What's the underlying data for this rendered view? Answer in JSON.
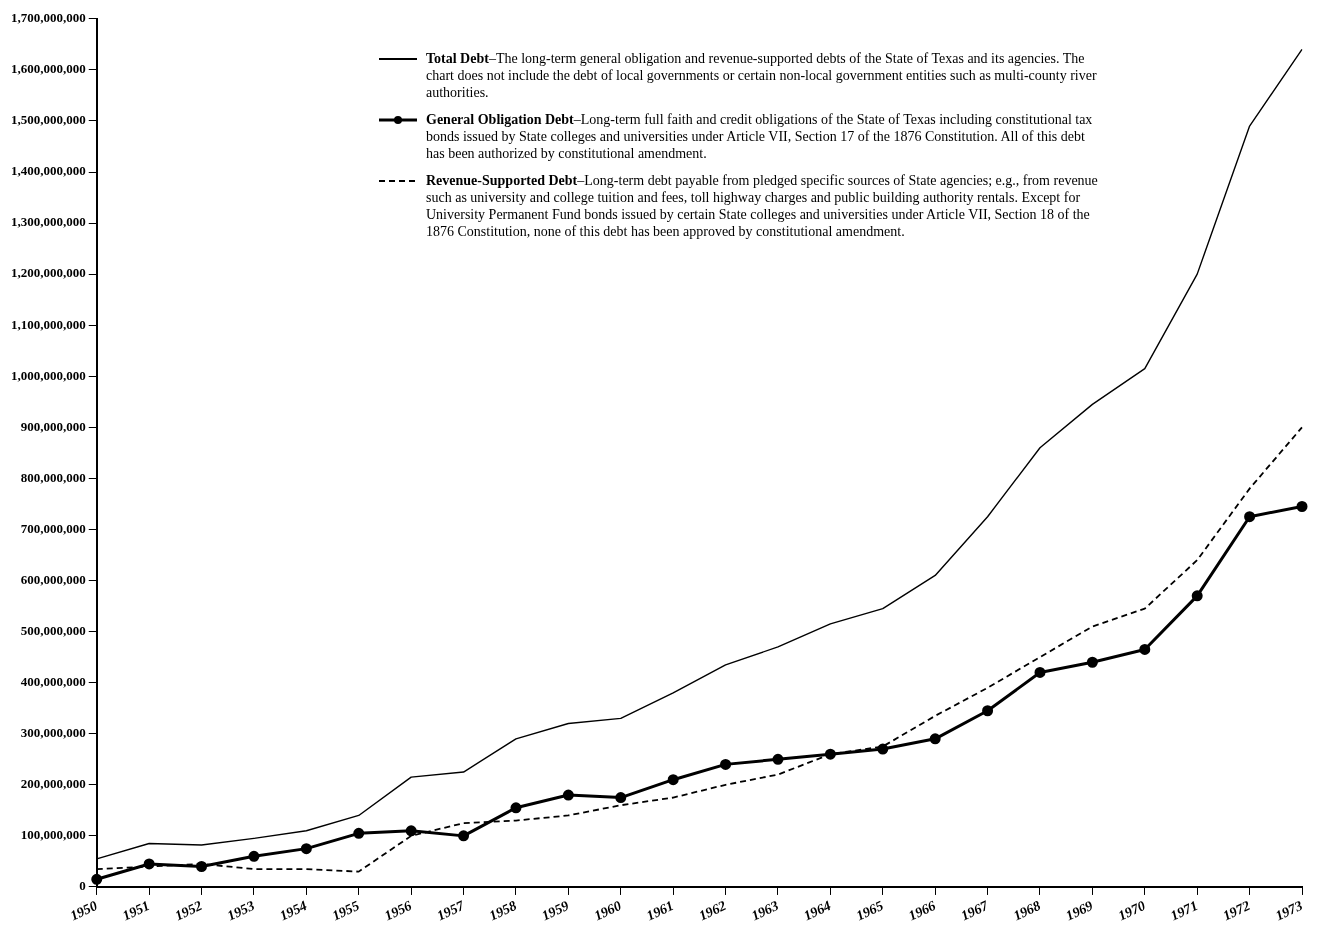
{
  "chart_data": {
    "type": "line",
    "categories": [
      "1950",
      "1951",
      "1952",
      "1953",
      "1954",
      "1955",
      "1956",
      "1957",
      "1958",
      "1959",
      "1960",
      "1961",
      "1962",
      "1963",
      "1964",
      "1965",
      "1966",
      "1967",
      "1968",
      "1969",
      "1970",
      "1971",
      "1972",
      "1973"
    ],
    "series": [
      {
        "name": "Total Debt",
        "color": "#000000",
        "line_style": "solid",
        "marker": "none",
        "values": [
          55000000,
          85000000,
          82000000,
          95000000,
          110000000,
          140000000,
          215000000,
          225000000,
          290000000,
          320000000,
          330000000,
          380000000,
          435000000,
          470000000,
          515000000,
          545000000,
          610000000,
          725000000,
          860000000,
          945000000,
          1015000000,
          1200000000,
          1490000000,
          1640000000
        ]
      },
      {
        "name": "General Obligation Debt",
        "color": "#000000",
        "line_style": "solid",
        "marker": "circle",
        "values": [
          15000000,
          45000000,
          40000000,
          60000000,
          75000000,
          105000000,
          110000000,
          100000000,
          155000000,
          180000000,
          175000000,
          210000000,
          240000000,
          250000000,
          260000000,
          270000000,
          290000000,
          345000000,
          420000000,
          440000000,
          465000000,
          570000000,
          725000000,
          745000000
        ]
      },
      {
        "name": "Revenue-Supported Debt",
        "color": "#000000",
        "line_style": "dashed",
        "marker": "none",
        "values": [
          35000000,
          40000000,
          45000000,
          35000000,
          35000000,
          30000000,
          100000000,
          125000000,
          130000000,
          140000000,
          160000000,
          175000000,
          200000000,
          220000000,
          260000000,
          275000000,
          335000000,
          390000000,
          450000000,
          510000000,
          545000000,
          640000000,
          780000000,
          900000000
        ]
      }
    ],
    "annotations": [
      "–The long-term general obligation and revenue-supported debts of the State of Texas and its agencies. The chart does not include the debt of local governments or certain non-local government entities such as multi-county river authorities.",
      "–Long-term full faith and credit obligations of the State of Texas including constitutional tax bonds issued by State colleges and universities under Article VII, Section 17 of the 1876 Constitution. All of this debt has been authorized by constitutional amendment.",
      "–Long-term debt payable from pledged specific sources of State agencies; e.g., from revenue such as university and college tuition and fees, toll highway charges and public building authority rentals. Except for University Permanent Fund bonds issued by certain State colleges and universities under Article VII, Section 18 of the 1876 Constitution, none of this debt has been approved by constitutional amendment."
    ],
    "ylim": [
      0,
      1700000000
    ],
    "yticks": [
      0,
      {
        "value": 100000000,
        "label": "100,000,000"
      },
      {
        "value": 200000000,
        "label": "200,000,000"
      },
      {
        "value": 300000000,
        "label": "300,000,000"
      },
      {
        "value": 400000000,
        "label": "400,000,000"
      },
      {
        "value": 500000000,
        "label": "500,000,000"
      },
      {
        "value": 600000000,
        "label": "600,000,000"
      },
      {
        "value": 700000000,
        "label": "700,000,000"
      },
      {
        "value": 800000000,
        "label": "800,000,000"
      },
      {
        "value": 900000000,
        "label": "900,000,000"
      },
      {
        "value": 1000000000,
        "label": "1,000,000,000"
      },
      {
        "value": 1100000000,
        "label": "1,100,000,000"
      },
      {
        "value": 1200000000,
        "label": "1,200,000,000"
      },
      {
        "value": 1300000000,
        "label": "1,300,000,000"
      },
      {
        "value": 1400000000,
        "label": "1,400,000,000"
      },
      {
        "value": 1500000000,
        "label": "1,500,000,000"
      },
      {
        "value": 1600000000,
        "label": "1,600,000,000"
      },
      {
        "value": 1700000000,
        "label": "1,700,000,000"
      }
    ],
    "grid": false,
    "legend": "top"
  }
}
